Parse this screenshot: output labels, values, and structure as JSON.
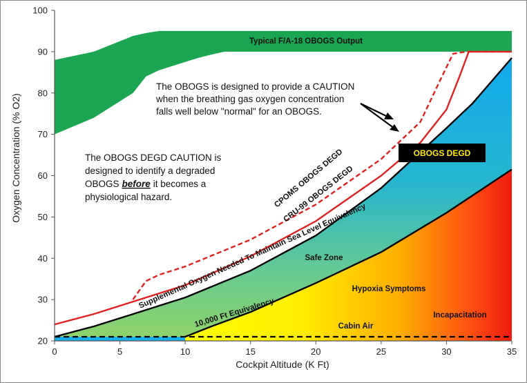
{
  "chart_data": {
    "type": "area",
    "xlabel": "Cockpit Altitude (K Ft)",
    "ylabel": "Oxygen Concentration (% O2)",
    "xlim": [
      0,
      35
    ],
    "ylim": [
      20,
      100
    ],
    "x_ticks": [
      0,
      5,
      10,
      15,
      20,
      25,
      30,
      35
    ],
    "y_ticks": [
      20,
      30,
      40,
      50,
      60,
      70,
      80,
      90,
      100
    ],
    "grid": false,
    "colors": {
      "obogs_output": "#1aa550",
      "degd_lines": "#e02020",
      "safe_zone_top": "#17aeea",
      "hypoxia_top": "#ffff00",
      "incapacitation": "#f01a10"
    },
    "series": [
      {
        "name": "Typical F/A-18 OBOGS Output",
        "kind": "band",
        "x": [
          0,
          3,
          6,
          7,
          8,
          9,
          10,
          11,
          12,
          13,
          35
        ],
        "lower": [
          70,
          74,
          80,
          84,
          85.5,
          86.5,
          87.5,
          88.5,
          89.3,
          90,
          90
        ],
        "upper": [
          88,
          90,
          93.8,
          94.5,
          95,
          95,
          95,
          95,
          95,
          95,
          95
        ]
      },
      {
        "name": "CPOMS OBOGS DEGD",
        "kind": "dashed-line",
        "x": [
          6,
          7,
          8,
          10,
          15,
          20,
          25,
          28,
          29.5,
          30.5,
          31.5,
          35
        ],
        "y": [
          30,
          34.5,
          36,
          38,
          44.5,
          53,
          64,
          73,
          83,
          89.5,
          90,
          90
        ]
      },
      {
        "name": "CRU-99 OBOGS DEGD",
        "kind": "line",
        "x": [
          0,
          3,
          6,
          10,
          15,
          20,
          25,
          28,
          30,
          31,
          31.7,
          35
        ],
        "y": [
          24,
          26.5,
          29.5,
          33.5,
          40.5,
          49,
          60,
          68,
          76,
          84,
          90,
          90
        ]
      },
      {
        "name": "Supplemental Oxygen Needed To Maintain Sea Level Equivalency",
        "kind": "line",
        "x": [
          0,
          3,
          6,
          10,
          15,
          20,
          25,
          30,
          32,
          35
        ],
        "y": [
          21,
          23.5,
          26.5,
          30.5,
          37,
          45.5,
          57,
          71.5,
          77.5,
          88.5
        ]
      },
      {
        "name": "10,000 Ft Equivalency",
        "kind": "line",
        "x": [
          10,
          12,
          15,
          20,
          25,
          30,
          35
        ],
        "y": [
          21,
          23.5,
          27,
          34,
          41.5,
          51,
          61.5
        ]
      },
      {
        "name": "Cabin Air",
        "kind": "dashed-line",
        "x": [
          0,
          35
        ],
        "y": [
          21,
          21
        ]
      }
    ],
    "annotations": [
      "Typical F/A-18 OBOGS Output",
      "The OBOGS is designed to provide a CAUTION",
      "when the breathing gas oxygen concentration",
      "falls well below \"normal\" for an OBOGS.",
      "OBOGS DEGD",
      "The OBOGS DEGD CAUTION is",
      "designed to identify a degraded",
      "OBOGS",
      "before",
      "it becomes a",
      "physiological hazard.",
      "CPOMS OBOGS DEGD",
      "CRU-99 OBOGS DEGD",
      "Supplemental Oxygen Needed To Maintain  Sea Level Equivalency",
      "Safe Zone",
      "Hypoxia Symptoms",
      "Incapacitation",
      "10,000 Ft Equivalency",
      "Cabin Air"
    ]
  }
}
